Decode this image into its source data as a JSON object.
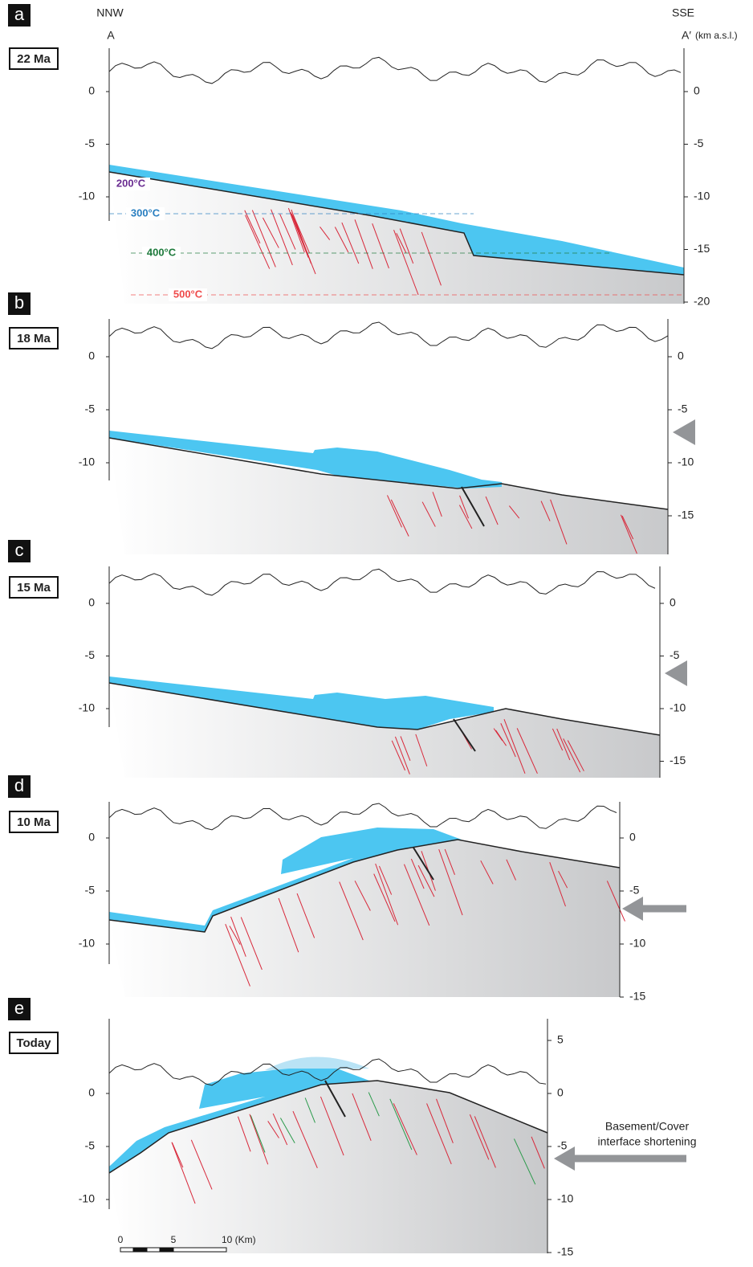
{
  "header": {
    "left_direction": "NNW",
    "left_point": "A",
    "right_direction": "SSE",
    "right_point": "A′",
    "unit": "(km a.s.l.)"
  },
  "panels": [
    {
      "letter": "a",
      "age": "22 Ma",
      "left_ticks": [
        0,
        -5,
        -10
      ],
      "right_ticks": [
        0,
        -5,
        -10,
        -15,
        -20
      ],
      "isotherms": [
        "200°C",
        "300°C",
        "400°C",
        "500°C"
      ]
    },
    {
      "letter": "b",
      "age": "18 Ma",
      "left_ticks": [
        0,
        -5,
        -10
      ],
      "right_ticks": [
        0,
        -5,
        -10,
        -15
      ]
    },
    {
      "letter": "c",
      "age": "15 Ma",
      "left_ticks": [
        0,
        -5,
        -10
      ],
      "right_ticks": [
        0,
        -5,
        -10,
        -15
      ]
    },
    {
      "letter": "d",
      "age": "10 Ma",
      "left_ticks": [
        0,
        -5,
        -10
      ],
      "right_ticks": [
        0,
        -5,
        -10,
        -15
      ]
    },
    {
      "letter": "e",
      "age": "Today",
      "left_ticks": [
        0,
        -5,
        -10
      ],
      "right_ticks": [
        5,
        0,
        -5,
        -10,
        -15
      ]
    }
  ],
  "annotation": [
    "Basement/Cover",
    "interface shortening"
  ],
  "scale_bar": [
    "0",
    "5",
    "10 (Km)"
  ]
}
